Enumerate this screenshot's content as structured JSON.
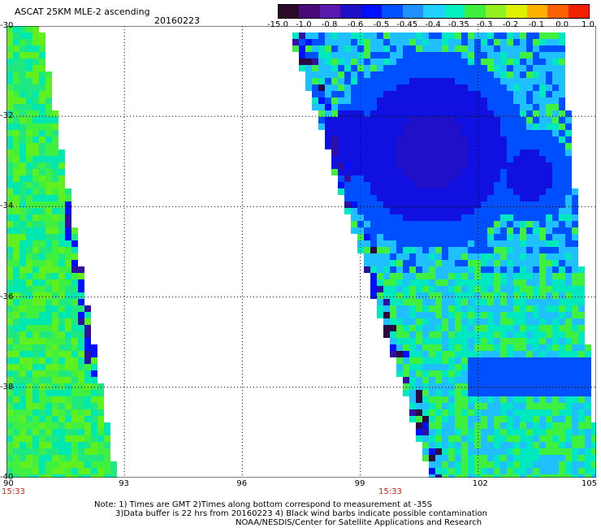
{
  "header": {
    "title": "ASCAT 25KM MLE-2 ascending",
    "date": "20160223"
  },
  "colorbar": {
    "labels": [
      "-15.0",
      "-1.0",
      "-0.8",
      "-0.6",
      "-0.5",
      "-0.45",
      "-0.4",
      "-0.35",
      "-0.3",
      "-0.2",
      "-0.1",
      "0.0",
      "1.0"
    ],
    "colors": [
      "#2a0a2a",
      "#4b0a7a",
      "#5a1ab0",
      "#2010c8",
      "#0010ff",
      "#0050ff",
      "#2090ff",
      "#20d0ff",
      "#00f0c0",
      "#40f040",
      "#90f020",
      "#e0f000",
      "#ffb000",
      "#ff6000",
      "#f02000"
    ]
  },
  "axes": {
    "x_ticks": [
      "90",
      "93",
      "96",
      "99",
      "102",
      "105"
    ],
    "y_ticks": [
      "-30",
      "-32",
      "-34",
      "-36",
      "-38",
      "-40"
    ],
    "times": [
      "15:33",
      "15:33"
    ]
  },
  "notes": {
    "line1": "Note: 1) Times are GMT 2)Times along bottom correspond to measurement at -35S",
    "line2": "3)Data buffer is 22 hrs from 20160223 4) Black wind barbs indicate possible contamination",
    "line3": "NOAA/NESDIS/Center for Satellite Applications and Research"
  },
  "map": {
    "lon_range": [
      90,
      105
    ],
    "lat_range": [
      -30,
      -40
    ],
    "left_swath_colors": [
      "#40f040",
      "#20e880",
      "#60f020",
      "#00e8b0"
    ],
    "right_swath_colors": [
      "#40f040",
      "#00e8c0",
      "#20c0ff",
      "#0050ff",
      "#1010e0",
      "#2010c8"
    ],
    "edge_colors": [
      "#0010ff",
      "#3010a0",
      "#2a0a40"
    ]
  }
}
